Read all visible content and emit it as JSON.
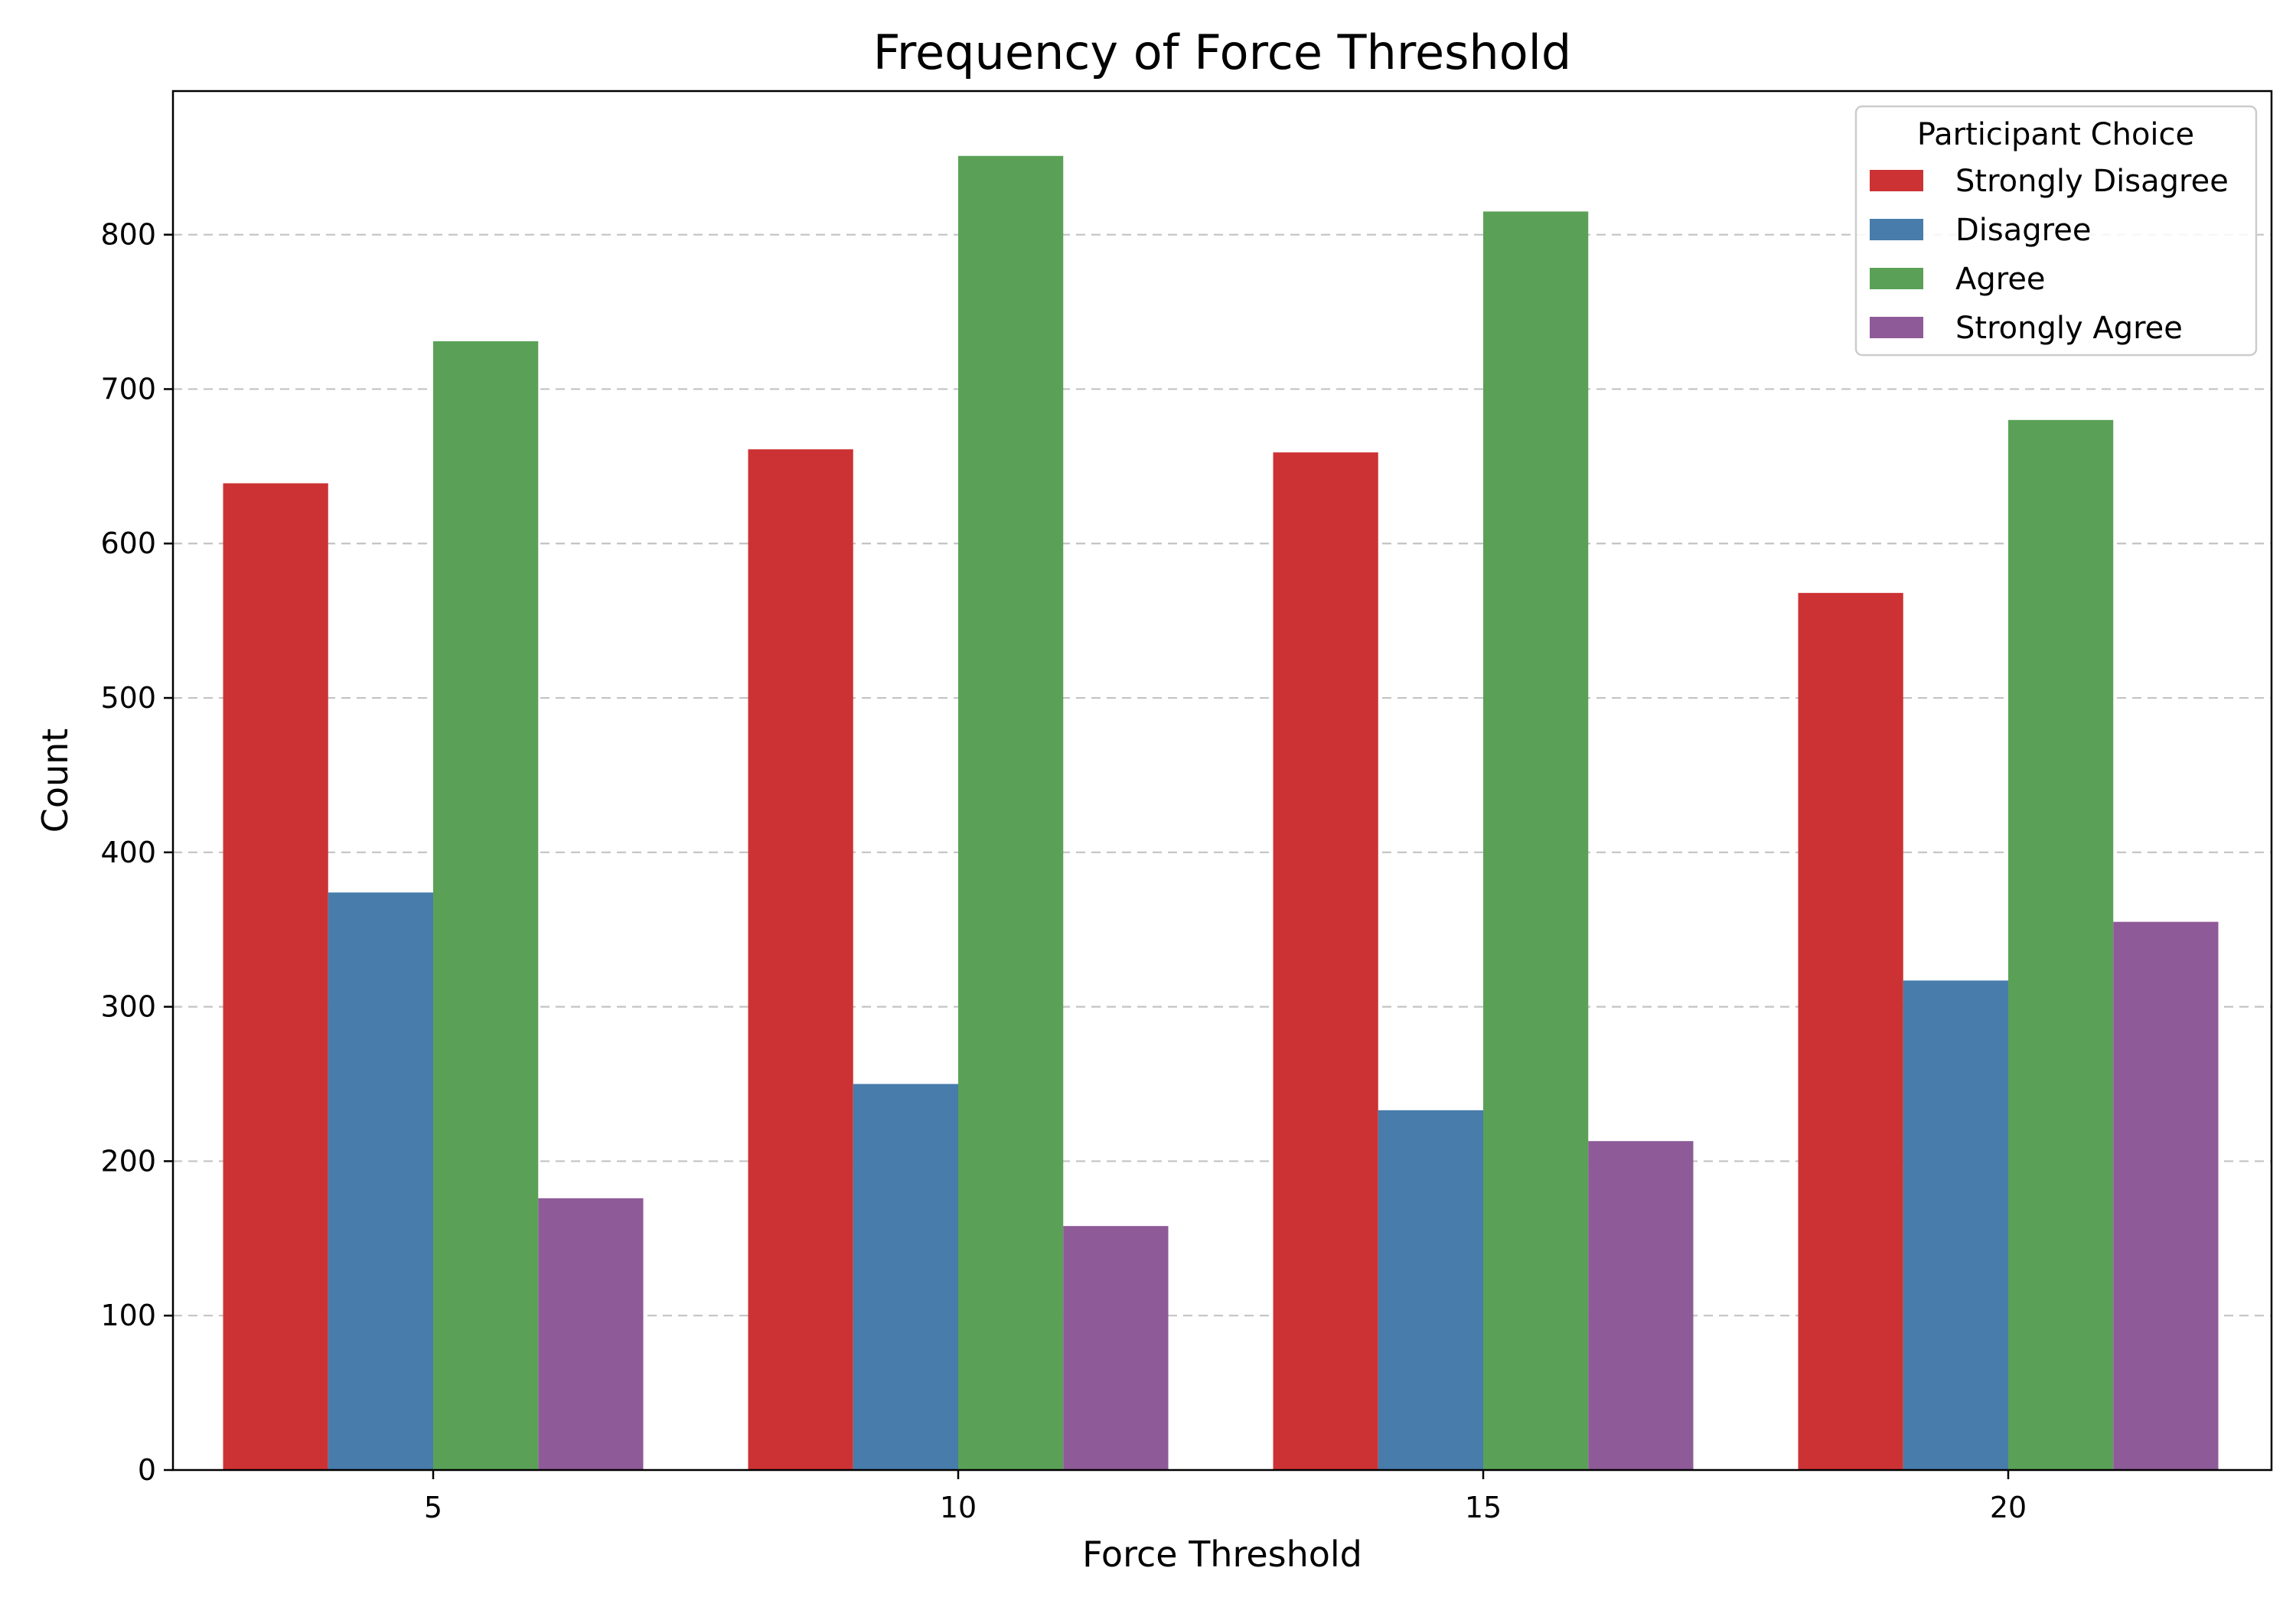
{
  "chart_data": {
    "type": "bar",
    "title": "Frequency of Force Threshold",
    "xlabel": "Force Threshold",
    "ylabel": "Count",
    "categories": [
      "5",
      "10",
      "15",
      "20"
    ],
    "ylim": [
      0,
      893
    ],
    "yticks": [
      0,
      100,
      200,
      300,
      400,
      500,
      600,
      700,
      800
    ],
    "grid": "y",
    "legend": {
      "title": "Participant Choice",
      "placement": "top-right"
    },
    "series": [
      {
        "name": "Strongly Disagree",
        "color": "#cc3234",
        "values": [
          639,
          661,
          659,
          568
        ]
      },
      {
        "name": "Disagree",
        "color": "#477cab",
        "values": [
          374,
          250,
          233,
          317
        ]
      },
      {
        "name": "Agree",
        "color": "#5aa157",
        "values": [
          731,
          851,
          815,
          680
        ]
      },
      {
        "name": "Strongly Agree",
        "color": "#8e5a98",
        "values": [
          176,
          158,
          213,
          355
        ]
      }
    ]
  }
}
